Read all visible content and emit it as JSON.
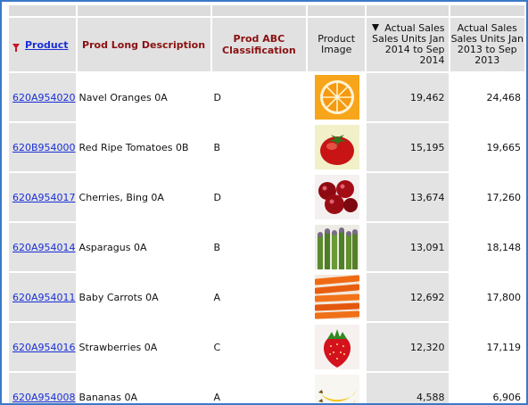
{
  "columns": {
    "product": "Product",
    "long_description": "Prod Long Description",
    "abc_classification": "Prod ABC Classification",
    "image": "Product Image",
    "sales_2014": "Actual Sales Sales Units Jan 2014 to Sep 2014",
    "sales_2013": "Actual Sales Sales Units Jan 2013 to Sep 2013"
  },
  "icons": {
    "filter": "filter-icon",
    "sort": "sort-descending-icon",
    "filter_color": "#c8142a",
    "link_color": "#1a2fd6",
    "header_text_color": "#8b1010",
    "frame_border": "#3a79c8"
  },
  "rows": [
    {
      "code": "620A954020",
      "description": "Navel Oranges 0A",
      "abc": "D",
      "image": "orange",
      "sales_2014": "19,462",
      "sales_2013": "24,468"
    },
    {
      "code": "620B954000",
      "description": "Red Ripe Tomatoes 0B",
      "abc": "B",
      "image": "tomato",
      "sales_2014": "15,195",
      "sales_2013": "19,665"
    },
    {
      "code": "620A954017",
      "description": "Cherries, Bing 0A",
      "abc": "D",
      "image": "cherries",
      "sales_2014": "13,674",
      "sales_2013": "17,260"
    },
    {
      "code": "620A954014",
      "description": "Asparagus 0A",
      "abc": "B",
      "image": "asparagus",
      "sales_2014": "13,091",
      "sales_2013": "18,148"
    },
    {
      "code": "620A954011",
      "description": "Baby Carrots 0A",
      "abc": "A",
      "image": "carrots",
      "sales_2014": "12,692",
      "sales_2013": "17,800"
    },
    {
      "code": "620A954016",
      "description": "Strawberries 0A",
      "abc": "C",
      "image": "strawberry",
      "sales_2014": "12,320",
      "sales_2013": "17,119"
    },
    {
      "code": "620A954008",
      "description": "Bananas 0A",
      "abc": "A",
      "image": "bananas",
      "sales_2014": "4,588",
      "sales_2013": "6,906"
    }
  ]
}
